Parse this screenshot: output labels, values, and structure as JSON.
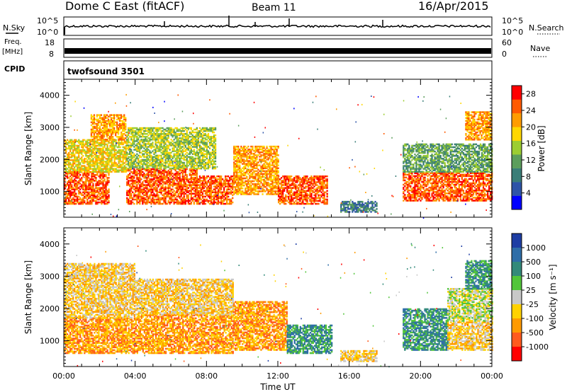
{
  "header": {
    "station": "Dome C East (fitACF)",
    "beam": "Beam 11",
    "date": "16/Apr/2015"
  },
  "panels": {
    "nsky": {
      "label": "N.Sky",
      "top_tick": "10^5",
      "bottom_tick": "10^0"
    },
    "nsearch": {
      "label": "N.Search",
      "top_tick": "10^5",
      "bottom_tick": "10^0"
    },
    "freq": {
      "label_line1": "Freq.",
      "label_line2": "[MHz]",
      "top_tick": "18",
      "bottom_tick": "8"
    },
    "nave": {
      "label": "Nave",
      "top_tick": "60",
      "bottom_tick": "0"
    },
    "cpid": {
      "label": "CPID",
      "value": "twofsound 3501"
    }
  },
  "chart_data": [
    {
      "type": "heatmap",
      "name": "power",
      "ylabel": "Slant Range [km]",
      "xlabel": "",
      "x_ticks": [
        "00:00",
        "04:00",
        "08:00",
        "12:00",
        "16:00",
        "20:00",
        "00:00"
      ],
      "y_ticks": [
        "1000",
        "2000",
        "3000",
        "4000"
      ],
      "ylim": [
        200,
        4500
      ],
      "xlim_hours": [
        0,
        24
      ],
      "colorbar": {
        "label": "Power [dB]",
        "ticks": [
          "4",
          "8",
          "12",
          "16",
          "20",
          "24",
          "28"
        ],
        "range": [
          0,
          30
        ]
      },
      "echo_regions": [
        {
          "t_start": 0.0,
          "t_end": 2.5,
          "r_start": 600,
          "r_end": 1600,
          "level": 27
        },
        {
          "t_start": 0.0,
          "t_end": 3.5,
          "r_start": 1600,
          "r_end": 2600,
          "level": 17
        },
        {
          "t_start": 1.5,
          "t_end": 3.5,
          "r_start": 2600,
          "r_end": 3400,
          "level": 21
        },
        {
          "t_start": 3.5,
          "t_end": 7.5,
          "r_start": 600,
          "r_end": 1700,
          "level": 27
        },
        {
          "t_start": 3.5,
          "t_end": 8.5,
          "r_start": 1700,
          "r_end": 3000,
          "level": 14
        },
        {
          "t_start": 7.5,
          "t_end": 9.5,
          "r_start": 600,
          "r_end": 1500,
          "level": 28
        },
        {
          "t_start": 9.5,
          "t_end": 12.0,
          "r_start": 900,
          "r_end": 2400,
          "level": 22
        },
        {
          "t_start": 12.0,
          "t_end": 14.8,
          "r_start": 600,
          "r_end": 1500,
          "level": 26
        },
        {
          "t_start": 15.5,
          "t_end": 17.5,
          "r_start": 350,
          "r_end": 700,
          "level": 8
        },
        {
          "t_start": 19.0,
          "t_end": 24.0,
          "r_start": 700,
          "r_end": 1600,
          "level": 26
        },
        {
          "t_start": 19.0,
          "t_end": 24.0,
          "r_start": 1600,
          "r_end": 2500,
          "level": 12
        },
        {
          "t_start": 22.5,
          "t_end": 24.0,
          "r_start": 2600,
          "r_end": 3500,
          "level": 22
        }
      ]
    },
    {
      "type": "heatmap",
      "name": "velocity",
      "ylabel": "Slant Range [km]",
      "xlabel": "Time UT",
      "x_ticks": [
        "00:00",
        "04:00",
        "08:00",
        "12:00",
        "16:00",
        "20:00",
        "00:00"
      ],
      "y_ticks": [
        "1000",
        "2000",
        "3000",
        "4000"
      ],
      "ylim": [
        200,
        4500
      ],
      "xlim_hours": [
        0,
        24
      ],
      "colorbar": {
        "label": "Velocity [m s⁻¹]",
        "ticks": [
          "1000",
          "500",
          "100",
          "25",
          "-25",
          "-100",
          "-500",
          "-1000"
        ]
      },
      "echo_regions": [
        {
          "t_start": 0.0,
          "t_end": 4.0,
          "r_start": 600,
          "r_end": 1700,
          "level": -250
        },
        {
          "t_start": 0.0,
          "t_end": 4.0,
          "r_start": 1700,
          "r_end": 3400,
          "level": -80
        },
        {
          "t_start": 4.0,
          "t_end": 9.5,
          "r_start": 600,
          "r_end": 1800,
          "level": -300
        },
        {
          "t_start": 4.0,
          "t_end": 9.5,
          "r_start": 1800,
          "r_end": 2900,
          "level": -60
        },
        {
          "t_start": 9.5,
          "t_end": 12.5,
          "r_start": 700,
          "r_end": 2200,
          "level": -150
        },
        {
          "t_start": 12.5,
          "t_end": 15.0,
          "r_start": 600,
          "r_end": 1500,
          "level": 300
        },
        {
          "t_start": 15.5,
          "t_end": 17.5,
          "r_start": 350,
          "r_end": 700,
          "level": -60
        },
        {
          "t_start": 19.0,
          "t_end": 21.5,
          "r_start": 700,
          "r_end": 2000,
          "level": 400
        },
        {
          "t_start": 21.5,
          "t_end": 24.0,
          "r_start": 700,
          "r_end": 1600,
          "level": -80
        },
        {
          "t_start": 21.5,
          "t_end": 24.0,
          "r_start": 1600,
          "r_end": 2600,
          "level": 0
        },
        {
          "t_start": 22.5,
          "t_end": 24.0,
          "r_start": 2600,
          "r_end": 3500,
          "level": 300
        }
      ]
    }
  ],
  "colors": {
    "power_scale": [
      "#0000ff",
      "#2e54a8",
      "#3a7e78",
      "#5c9e5c",
      "#9ccd32",
      "#ffd700",
      "#ff9c00",
      "#ff5a00",
      "#ff0000"
    ],
    "velocity_scale": [
      "#1e3ea4",
      "#2f6ea8",
      "#338a7a",
      "#52c53a",
      "#c8c8c8",
      "#ffd200",
      "#ff9a00",
      "#ff5a1e",
      "#ff0000"
    ]
  }
}
